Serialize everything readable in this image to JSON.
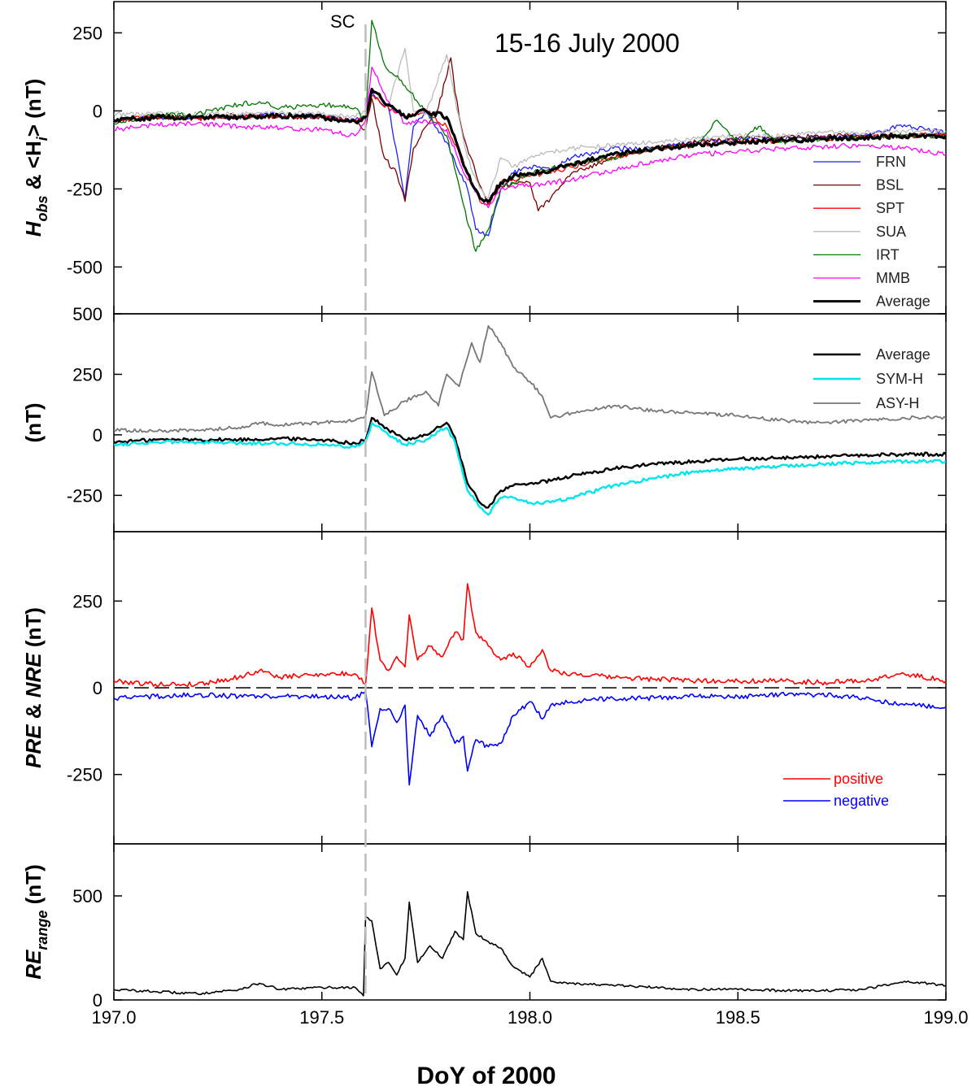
{
  "figure": {
    "title": "15-16 July 2000",
    "sc_label": "SC",
    "xlabel": "DoY of 2000",
    "xlim": [
      197.0,
      199.0
    ],
    "xticks": [
      "197.0",
      "197.5",
      "198.0",
      "198.5",
      "199.0"
    ],
    "sc_time": 197.605
  },
  "chart_data": [
    {
      "type": "line",
      "panel": "top",
      "ylabel": {
        "main": "H",
        "sub1": "obs",
        "mid": " & <H",
        "sub2": "i",
        "tail": "> (nT)"
      },
      "ylim": [
        -650,
        350
      ],
      "yticks": [
        "250",
        "0",
        "-250",
        "-500"
      ],
      "yticks_values": [
        250,
        0,
        -250,
        -500
      ],
      "legend_position": "bottom-right",
      "series": [
        {
          "name": "FRN",
          "color": "#1f1fff",
          "width": 1.3,
          "x": [
            197.0,
            197.1,
            197.2,
            197.3,
            197.4,
            197.5,
            197.58,
            197.605,
            197.62,
            197.66,
            197.7,
            197.72,
            197.75,
            197.8,
            197.85,
            197.87,
            197.9,
            197.93,
            197.96,
            198.0,
            198.05,
            198.1,
            198.2,
            198.3,
            198.4,
            198.5,
            198.6,
            198.7,
            198.8,
            198.9,
            198.95,
            199.0
          ],
          "y": [
            -30,
            -20,
            -20,
            -20,
            -10,
            -20,
            -30,
            -20,
            60,
            10,
            -280,
            -50,
            0,
            -100,
            -250,
            -380,
            -400,
            -250,
            -200,
            -180,
            -190,
            -150,
            -120,
            -120,
            -100,
            -90,
            -90,
            -85,
            -80,
            -45,
            -60,
            -70
          ]
        },
        {
          "name": "BSL",
          "color": "#7a0000",
          "width": 1.3,
          "x": [
            197.0,
            197.1,
            197.2,
            197.3,
            197.4,
            197.5,
            197.58,
            197.605,
            197.62,
            197.65,
            197.68,
            197.7,
            197.72,
            197.75,
            197.78,
            197.81,
            197.82,
            197.84,
            197.87,
            197.9,
            197.93,
            197.96,
            198.0,
            198.02,
            198.05,
            198.1,
            198.2,
            198.3,
            198.4,
            198.5,
            198.6,
            198.7,
            198.8,
            198.9,
            199.0
          ],
          "y": [
            -30,
            -20,
            -20,
            -15,
            -20,
            -20,
            -30,
            -60,
            40,
            -150,
            -200,
            -290,
            -120,
            -50,
            10,
            170,
            60,
            -80,
            -200,
            -300,
            -240,
            -230,
            -230,
            -320,
            -280,
            -200,
            -150,
            -120,
            -100,
            -90,
            -85,
            -80,
            -80,
            -80,
            -75
          ]
        },
        {
          "name": "SPT",
          "color": "#ff0000",
          "width": 1.3,
          "x": [
            197.0,
            197.1,
            197.2,
            197.3,
            197.4,
            197.5,
            197.58,
            197.605,
            197.62,
            197.66,
            197.7,
            197.75,
            197.8,
            197.85,
            197.88,
            197.9,
            197.93,
            197.96,
            198.0,
            198.1,
            198.2,
            198.3,
            198.4,
            198.5,
            198.6,
            198.7,
            198.8,
            198.9,
            199.0
          ],
          "y": [
            -30,
            -20,
            -25,
            -20,
            -20,
            -20,
            -30,
            -20,
            50,
            10,
            -20,
            0,
            -50,
            -200,
            -290,
            -300,
            -230,
            -220,
            -210,
            -180,
            -150,
            -120,
            -110,
            -100,
            -100,
            -90,
            -85,
            -80,
            -75
          ]
        },
        {
          "name": "SUA",
          "color": "#bbbbbb",
          "width": 1.3,
          "x": [
            197.0,
            197.1,
            197.2,
            197.3,
            197.4,
            197.5,
            197.58,
            197.605,
            197.62,
            197.66,
            197.7,
            197.72,
            197.75,
            197.8,
            197.82,
            197.85,
            197.88,
            197.9,
            197.93,
            197.96,
            198.0,
            198.05,
            198.1,
            198.2,
            198.3,
            198.4,
            198.5,
            198.6,
            198.7,
            198.8,
            198.9,
            199.0
          ],
          "y": [
            -10,
            -10,
            -10,
            -10,
            -5,
            -10,
            -20,
            0,
            70,
            20,
            200,
            0,
            -10,
            180,
            40,
            -150,
            -250,
            -280,
            -150,
            -180,
            -150,
            -130,
            -120,
            -110,
            -100,
            -90,
            -80,
            -80,
            -70,
            -70,
            -65,
            -65
          ]
        },
        {
          "name": "IRT",
          "color": "#007700",
          "width": 1.3,
          "x": [
            197.0,
            197.1,
            197.2,
            197.3,
            197.35,
            197.4,
            197.5,
            197.58,
            197.605,
            197.62,
            197.65,
            197.7,
            197.75,
            197.8,
            197.84,
            197.87,
            197.9,
            197.93,
            197.96,
            198.0,
            198.1,
            198.2,
            198.3,
            198.4,
            198.45,
            198.5,
            198.55,
            198.6,
            198.7,
            198.8,
            198.9,
            199.0
          ],
          "y": [
            -40,
            -15,
            -10,
            20,
            30,
            10,
            20,
            10,
            -30,
            290,
            150,
            80,
            0,
            -80,
            -300,
            -450,
            -380,
            -250,
            -230,
            -200,
            -170,
            -150,
            -120,
            -110,
            -30,
            -100,
            -50,
            -100,
            -90,
            -85,
            -80,
            -80
          ]
        },
        {
          "name": "MMB",
          "color": "#ff00ff",
          "width": 1.3,
          "x": [
            197.0,
            197.1,
            197.2,
            197.3,
            197.4,
            197.5,
            197.58,
            197.605,
            197.62,
            197.66,
            197.7,
            197.75,
            197.8,
            197.85,
            197.9,
            197.93,
            197.96,
            198.0,
            198.1,
            198.2,
            198.3,
            198.4,
            198.5,
            198.6,
            198.7,
            198.8,
            198.9,
            199.0
          ],
          "y": [
            -60,
            -45,
            -40,
            -50,
            -55,
            -60,
            -80,
            -30,
            140,
            30,
            -40,
            -30,
            -60,
            -220,
            -310,
            -250,
            -240,
            -240,
            -220,
            -190,
            -160,
            -140,
            -130,
            -120,
            -115,
            -110,
            -120,
            -140
          ]
        },
        {
          "name": "Average",
          "color": "#000000",
          "width": 3.2,
          "x": [
            197.0,
            197.1,
            197.2,
            197.3,
            197.4,
            197.5,
            197.58,
            197.605,
            197.62,
            197.66,
            197.7,
            197.75,
            197.8,
            197.85,
            197.88,
            197.9,
            197.93,
            197.96,
            198.0,
            198.05,
            198.1,
            198.2,
            198.3,
            198.4,
            198.5,
            198.6,
            198.7,
            198.8,
            198.9,
            199.0
          ],
          "y": [
            -30,
            -20,
            -20,
            -20,
            -15,
            -20,
            -35,
            -20,
            70,
            20,
            -20,
            0,
            -20,
            -200,
            -280,
            -290,
            -230,
            -210,
            -200,
            -190,
            -170,
            -140,
            -120,
            -110,
            -100,
            -95,
            -90,
            -85,
            -80,
            -80
          ]
        }
      ]
    },
    {
      "type": "line",
      "panel": "second",
      "ylabel": "(nT)",
      "ylim": [
        -400,
        500
      ],
      "yticks": [
        "500",
        "250",
        "0",
        "-250"
      ],
      "yticks_values": [
        500,
        250,
        0,
        -250
      ],
      "legend_position": "top-right",
      "series": [
        {
          "name": "Average",
          "color": "#000000",
          "width": 2.4,
          "x": [
            197.0,
            197.1,
            197.2,
            197.3,
            197.4,
            197.5,
            197.58,
            197.605,
            197.62,
            197.66,
            197.7,
            197.75,
            197.8,
            197.82,
            197.85,
            197.88,
            197.9,
            197.93,
            197.96,
            198.0,
            198.05,
            198.1,
            198.2,
            198.3,
            198.4,
            198.5,
            198.6,
            198.7,
            198.8,
            198.9,
            199.0
          ],
          "y": [
            -30,
            -20,
            -20,
            -20,
            -15,
            -20,
            -35,
            -20,
            70,
            20,
            -20,
            0,
            50,
            -10,
            -200,
            -280,
            -300,
            -230,
            -210,
            -200,
            -190,
            -170,
            -140,
            -120,
            -110,
            -100,
            -95,
            -90,
            -85,
            -80,
            -80
          ]
        },
        {
          "name": "SYM-H",
          "color": "#00e5ee",
          "width": 2.4,
          "x": [
            197.0,
            197.1,
            197.2,
            197.3,
            197.4,
            197.5,
            197.58,
            197.605,
            197.62,
            197.66,
            197.7,
            197.75,
            197.8,
            197.82,
            197.85,
            197.88,
            197.9,
            197.93,
            197.96,
            198.0,
            198.05,
            198.1,
            198.2,
            198.3,
            198.4,
            198.5,
            198.6,
            198.7,
            198.8,
            198.9,
            199.0
          ],
          "y": [
            -40,
            -30,
            -30,
            -35,
            -35,
            -40,
            -50,
            -30,
            50,
            0,
            -40,
            -20,
            30,
            -30,
            -230,
            -300,
            -330,
            -260,
            -260,
            -280,
            -280,
            -260,
            -210,
            -180,
            -150,
            -140,
            -130,
            -120,
            -115,
            -110,
            -110
          ]
        },
        {
          "name": "ASY-H",
          "color": "#777777",
          "width": 1.8,
          "x": [
            197.0,
            197.1,
            197.2,
            197.3,
            197.35,
            197.4,
            197.5,
            197.58,
            197.605,
            197.62,
            197.65,
            197.7,
            197.75,
            197.78,
            197.8,
            197.83,
            197.86,
            197.88,
            197.9,
            197.93,
            197.96,
            198.0,
            198.03,
            198.05,
            198.1,
            198.2,
            198.3,
            198.4,
            198.5,
            198.6,
            198.7,
            198.8,
            198.9,
            199.0
          ],
          "y": [
            20,
            15,
            20,
            30,
            50,
            40,
            50,
            60,
            80,
            260,
            80,
            140,
            180,
            120,
            250,
            200,
            380,
            300,
            450,
            380,
            280,
            220,
            160,
            70,
            90,
            120,
            100,
            90,
            80,
            60,
            50,
            60,
            70,
            70
          ]
        }
      ]
    },
    {
      "type": "line",
      "panel": "third",
      "ylabel": {
        "a": "PRE",
        "mid": " & ",
        "b": "NRE",
        "tail": " (nT)"
      },
      "ylim": [
        -450,
        450
      ],
      "yticks": [
        "250",
        "0",
        "-250"
      ],
      "yticks_values": [
        250,
        0,
        -250
      ],
      "legend_position": "bottom-right",
      "series": [
        {
          "name": "positive",
          "color": "#ff0000",
          "width": 1.6,
          "x": [
            197.0,
            197.1,
            197.2,
            197.3,
            197.35,
            197.4,
            197.5,
            197.58,
            197.605,
            197.62,
            197.64,
            197.66,
            197.68,
            197.7,
            197.71,
            197.73,
            197.76,
            197.79,
            197.82,
            197.84,
            197.85,
            197.87,
            197.9,
            197.93,
            197.96,
            198.0,
            198.03,
            198.05,
            198.1,
            198.2,
            198.3,
            198.4,
            198.5,
            198.6,
            198.7,
            198.8,
            198.9,
            199.0
          ],
          "y": [
            20,
            10,
            10,
            30,
            50,
            30,
            40,
            40,
            10,
            230,
            80,
            50,
            90,
            60,
            210,
            80,
            120,
            90,
            160,
            140,
            300,
            160,
            120,
            80,
            100,
            60,
            110,
            50,
            40,
            30,
            25,
            20,
            20,
            20,
            15,
            20,
            40,
            20
          ]
        },
        {
          "name": "negative",
          "color": "#0000ff",
          "width": 1.6,
          "x": [
            197.0,
            197.1,
            197.2,
            197.3,
            197.4,
            197.5,
            197.58,
            197.605,
            197.62,
            197.64,
            197.66,
            197.68,
            197.7,
            197.71,
            197.73,
            197.76,
            197.79,
            197.82,
            197.84,
            197.85,
            197.87,
            197.9,
            197.93,
            197.96,
            198.0,
            198.03,
            198.05,
            198.1,
            198.2,
            198.3,
            198.4,
            198.5,
            198.6,
            198.7,
            198.8,
            198.9,
            199.0
          ],
          "y": [
            -30,
            -25,
            -20,
            -25,
            -25,
            -25,
            -30,
            -10,
            -170,
            -60,
            -60,
            -100,
            -50,
            -280,
            -80,
            -140,
            -80,
            -160,
            -140,
            -240,
            -150,
            -170,
            -160,
            -80,
            -40,
            -90,
            -50,
            -40,
            -30,
            -30,
            -25,
            -25,
            -20,
            -20,
            -30,
            -50,
            -55
          ]
        }
      ]
    },
    {
      "type": "line",
      "panel": "bottom",
      "ylabel": {
        "main": "RE",
        "sub": "range",
        "tail": " (nT)"
      },
      "ylim": [
        0,
        750
      ],
      "yticks": [
        "500",
        "0"
      ],
      "yticks_values": [
        500,
        0
      ],
      "series": [
        {
          "name": "",
          "color": "#000000",
          "width": 1.6,
          "x": [
            197.0,
            197.1,
            197.2,
            197.3,
            197.35,
            197.4,
            197.5,
            197.58,
            197.6,
            197.605,
            197.62,
            197.64,
            197.66,
            197.68,
            197.7,
            197.71,
            197.73,
            197.76,
            197.79,
            197.82,
            197.84,
            197.85,
            197.87,
            197.9,
            197.93,
            197.96,
            198.0,
            198.03,
            198.05,
            198.1,
            198.2,
            198.3,
            198.4,
            198.5,
            198.6,
            198.7,
            198.8,
            198.9,
            199.0
          ],
          "y": [
            50,
            40,
            30,
            50,
            80,
            50,
            60,
            60,
            20,
            400,
            380,
            150,
            180,
            120,
            200,
            470,
            180,
            260,
            200,
            330,
            290,
            520,
            320,
            280,
            250,
            160,
            110,
            200,
            90,
            80,
            70,
            60,
            50,
            50,
            45,
            45,
            50,
            90,
            70
          ]
        }
      ]
    }
  ]
}
